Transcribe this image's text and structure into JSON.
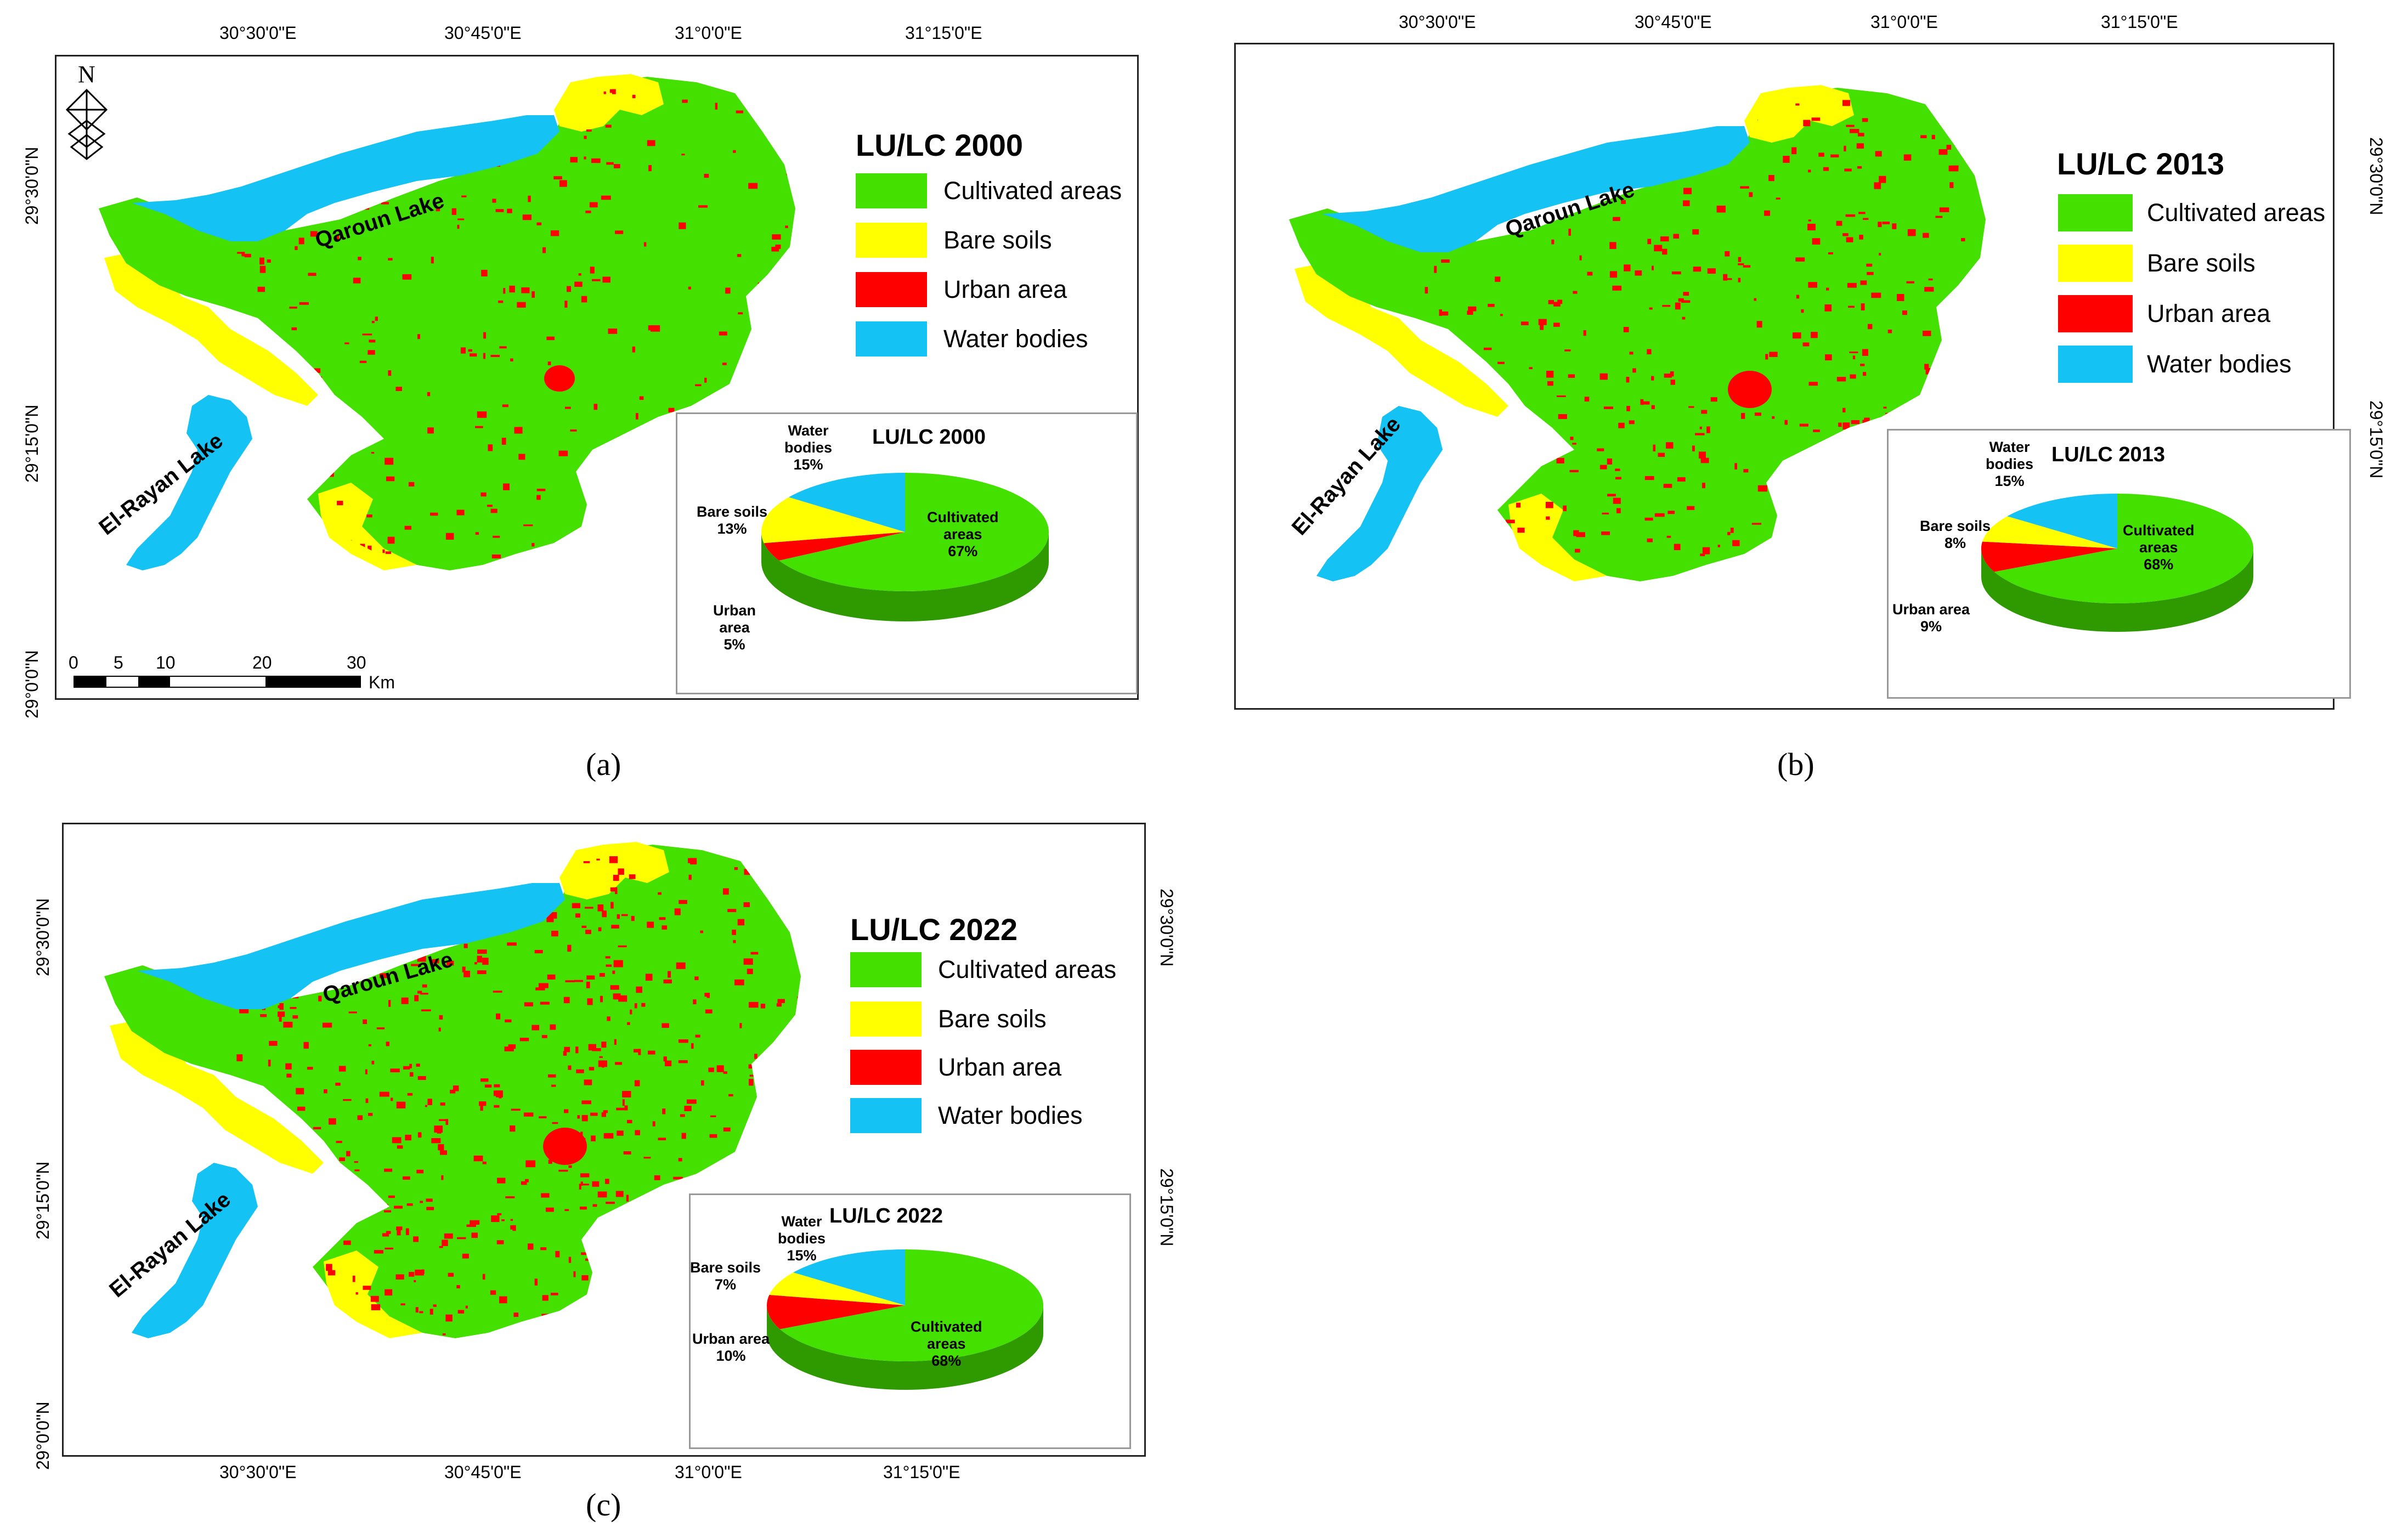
{
  "colors": {
    "cultivated": "#44e000",
    "bare": "#ffff00",
    "urban": "#ff0000",
    "water": "#14c3f4"
  },
  "panel_a": {
    "caption": "(a)",
    "legend_title": "LU/LC 2000",
    "legend": [
      "Cultivated areas",
      "Bare soils",
      "Urban area",
      "Water bodies"
    ],
    "coords_top": [
      "30°30'0\"E",
      "30°45'0\"E",
      "31°0'0\"E",
      "31°15'0\"E"
    ],
    "coords_left": [
      "29°30'0\"N",
      "29°15'0\"N",
      "29°0'0\"N"
    ],
    "north": "N",
    "lake1": "Qaroun Lake",
    "lake2": "El-Rayan Lake",
    "scale_ticks": [
      "0",
      "5",
      "10",
      "20",
      "30"
    ],
    "scale_unit": "Km",
    "pie": {
      "title": "LU/LC 2000",
      "labels": {
        "water": [
          "Water",
          "bodies",
          "15%"
        ],
        "bare": [
          "Bare soils",
          "13%"
        ],
        "urban": [
          "Urban",
          "area",
          "5%"
        ],
        "cultivated": [
          "Cultivated",
          "areas",
          "67%"
        ]
      },
      "values": {
        "cultivated": 67,
        "urban": 5,
        "bare": 13,
        "water": 15
      }
    }
  },
  "panel_b": {
    "caption": "(b)",
    "legend_title": "LU/LC 2013",
    "legend": [
      "Cultivated areas",
      "Bare soils",
      "Urban area",
      "Water bodies"
    ],
    "coords_top": [
      "30°30'0\"E",
      "30°45'0\"E",
      "31°0'0\"E",
      "31°15'0\"E"
    ],
    "coords_right": [
      "29°30'0\"N",
      "29°15'0\"N"
    ],
    "lake1": "Qaroun Lake",
    "lake2": "El-Rayan Lake",
    "pie": {
      "title": "LU/LC 2013",
      "labels": {
        "water": [
          "Water",
          "bodies",
          "15%"
        ],
        "bare": [
          "Bare soils",
          "8%"
        ],
        "urban": [
          "Urban area",
          "9%"
        ],
        "cultivated": [
          "Cultivated",
          "areas",
          "68%"
        ]
      },
      "values": {
        "cultivated": 68,
        "urban": 9,
        "bare": 8,
        "water": 15
      }
    }
  },
  "panel_c": {
    "caption": "(c)",
    "legend_title": "LU/LC 2022",
    "legend": [
      "Cultivated areas",
      "Bare soils",
      "Urban area",
      "Water bodies"
    ],
    "coords_bottom": [
      "30°30'0\"E",
      "30°45'0\"E",
      "31°0'0\"E",
      "31°15'0\"E"
    ],
    "coords_left": [
      "29°30'0\"N",
      "29°15'0\"N",
      "29°0'0\"N"
    ],
    "coords_right": [
      "29°30'0\"N",
      "29°15'0\"N"
    ],
    "lake1": "Qaroun Lake",
    "lake2": "El-Rayan Lake",
    "pie": {
      "title": "LU/LC 2022",
      "labels": {
        "water": [
          "Water",
          "bodies",
          "15%"
        ],
        "bare": [
          "Bare soils",
          "7%"
        ],
        "urban": [
          "Urban area",
          "10%"
        ],
        "cultivated": [
          "Cultivated",
          "areas",
          "68%"
        ]
      },
      "values": {
        "cultivated": 68,
        "urban": 10,
        "bare": 7,
        "water": 15
      }
    }
  }
}
